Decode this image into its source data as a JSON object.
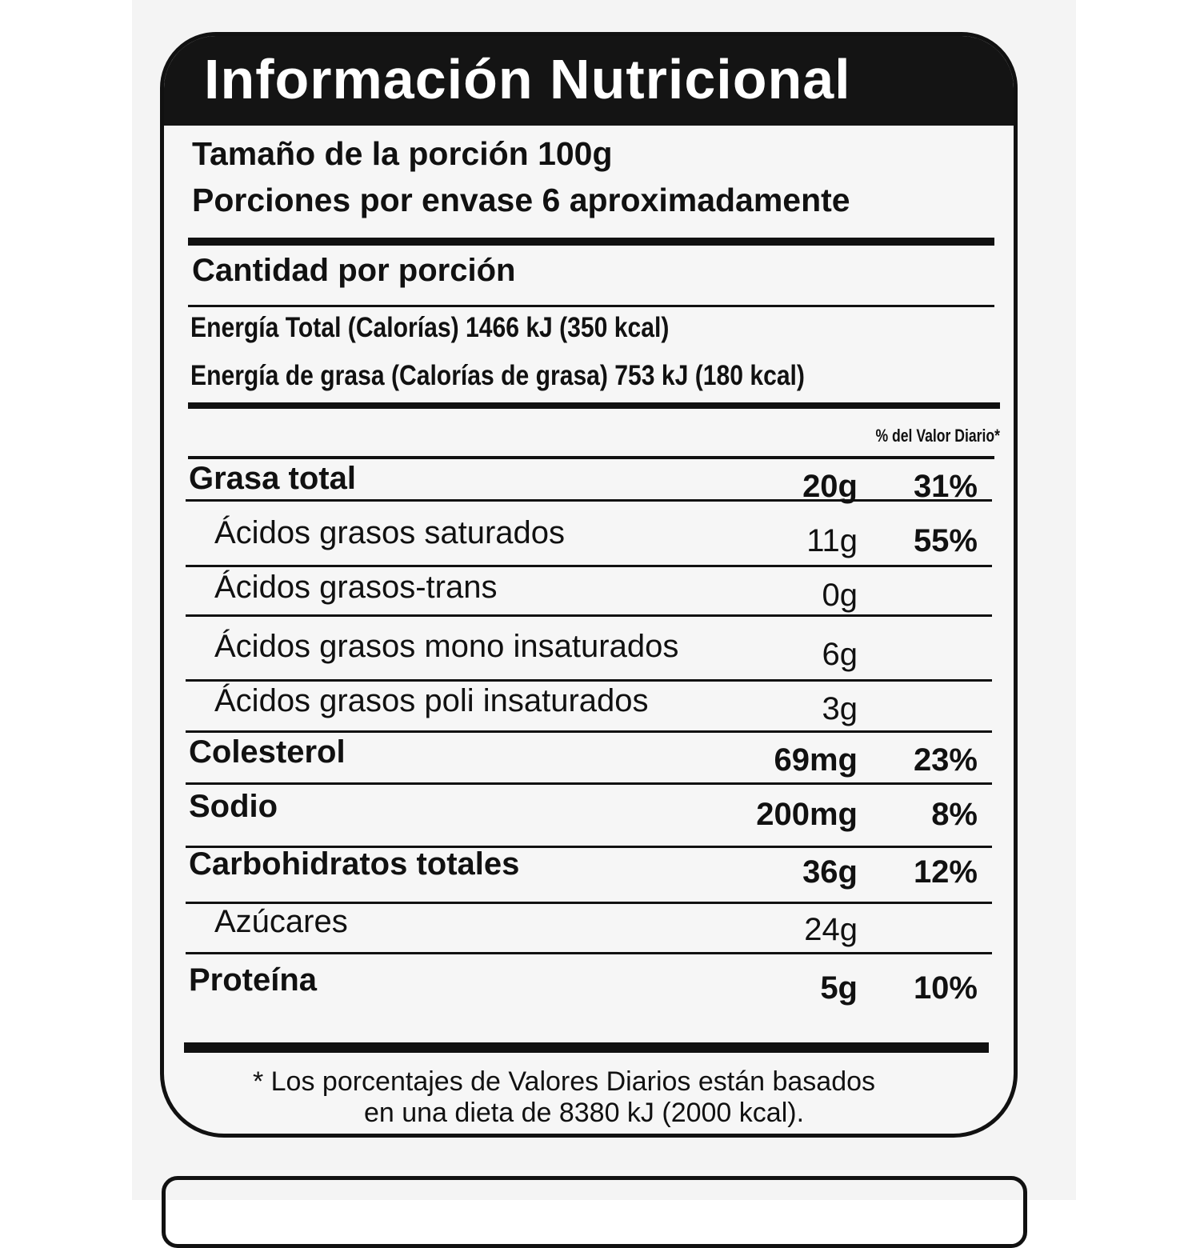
{
  "title": "Información Nutricional",
  "serving_size": "Tamaño de la porción 100g",
  "servings_per_container": "Porciones por envase 6 aproximadamente",
  "amount_per_serving": "Cantidad por porción",
  "energy_total": "Energía Total (Calorías) 1466 kJ (350 kcal)",
  "energy_fat": "Energía de grasa (Calorías de grasa) 753 kJ (180 kcal)",
  "dv_header": "% del Valor Diario*",
  "nutrients": [
    {
      "name": "Grasa total",
      "amount": "20g",
      "dv": "31%",
      "bold": true,
      "indent": false
    },
    {
      "name": "Ácidos grasos saturados",
      "amount": "11g",
      "dv": "55%",
      "bold": false,
      "indent": true
    },
    {
      "name": "Ácidos grasos-trans",
      "amount": "0g",
      "dv": "",
      "bold": false,
      "indent": true
    },
    {
      "name": "Ácidos grasos mono insaturados",
      "amount": "6g",
      "dv": "",
      "bold": false,
      "indent": true
    },
    {
      "name": "Ácidos grasos poli insaturados",
      "amount": "3g",
      "dv": "",
      "bold": false,
      "indent": true
    },
    {
      "name": "Colesterol",
      "amount": "69mg",
      "dv": "23%",
      "bold": true,
      "indent": false
    },
    {
      "name": "Sodio",
      "amount": "200mg",
      "dv": "8%",
      "bold": true,
      "indent": false
    },
    {
      "name": "Carbohidratos totales",
      "amount": "36g",
      "dv": "12%",
      "bold": true,
      "indent": false
    },
    {
      "name": "Azúcares",
      "amount": "24g",
      "dv": "",
      "bold": false,
      "indent": true
    },
    {
      "name": "Proteína",
      "amount": "5g",
      "dv": "10%",
      "bold": true,
      "indent": false
    }
  ],
  "footnote_line1": "* Los porcentajes de Valores Diarios están basados",
  "footnote_line2": "en una dieta de 8380 kJ (2000 kcal)."
}
